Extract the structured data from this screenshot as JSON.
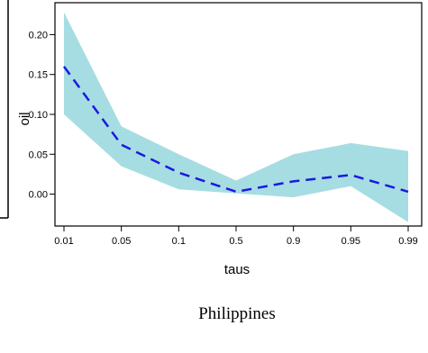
{
  "chart_data": {
    "type": "line",
    "title": "",
    "caption": "Philippines",
    "xlabel": "taus",
    "ylabel": "oil",
    "categories": [
      "0.01",
      "0.05",
      "0.1",
      "0.5",
      "0.9",
      "0.95",
      "0.99"
    ],
    "ylim": [
      -0.04,
      0.24
    ],
    "yticks": [
      0.0,
      0.05,
      0.1,
      0.15,
      0.2
    ],
    "ytick_labels": [
      "0.00",
      "0.05",
      "0.10",
      "0.15",
      "0.20"
    ],
    "series": [
      {
        "values": [
          0.16,
          0.062,
          0.027,
          0.003,
          0.016,
          0.024,
          0.003
        ]
      }
    ],
    "band": {
      "lower": [
        0.1,
        0.035,
        0.006,
        0.001,
        -0.004,
        0.01,
        -0.035
      ],
      "upper": [
        0.228,
        0.085,
        0.05,
        0.017,
        0.05,
        0.064,
        0.054
      ]
    },
    "colors": {
      "line": "#1a1adf",
      "band": "#a6dde3",
      "axis": "#000000"
    },
    "grid": false
  }
}
